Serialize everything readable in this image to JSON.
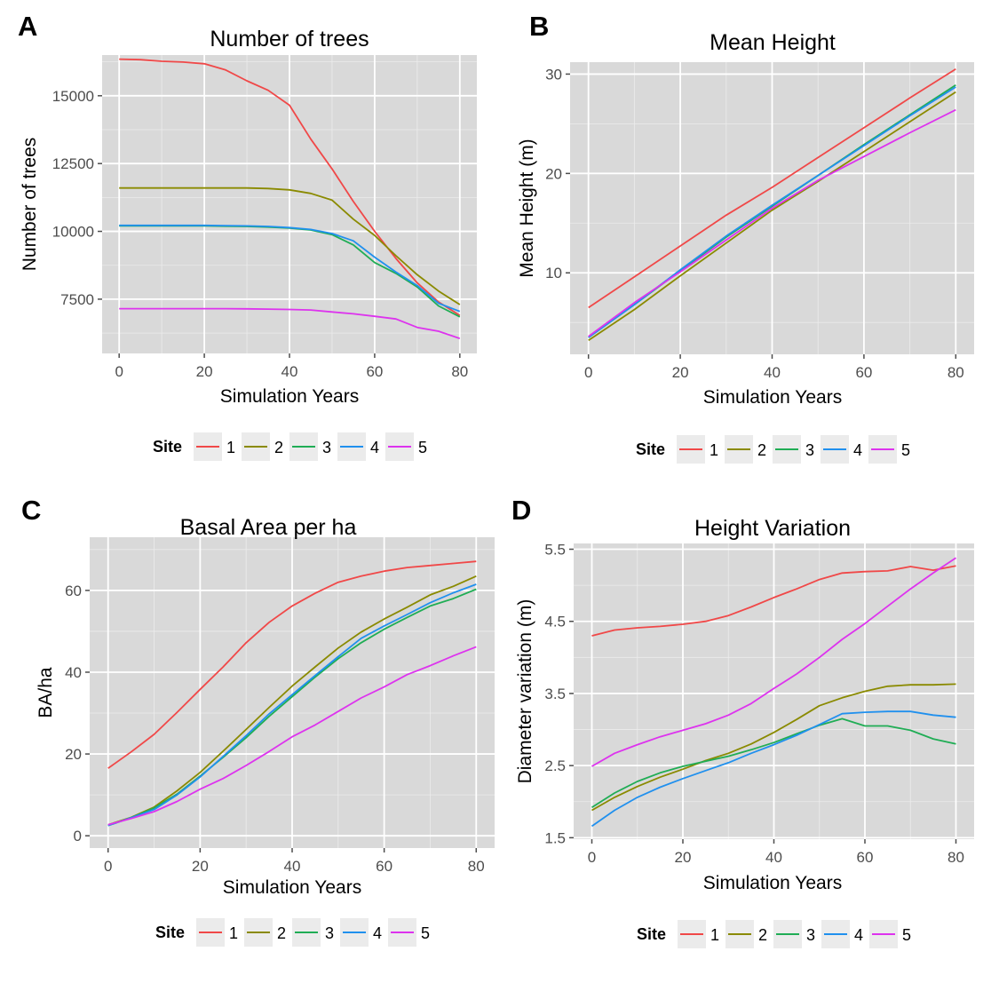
{
  "legend": {
    "title": "Site",
    "entries": [
      "1",
      "2",
      "3",
      "4",
      "5"
    ],
    "colors": [
      "#f04848",
      "#8a8a00",
      "#20ad55",
      "#2090ee",
      "#dd33ee"
    ]
  },
  "chart_data": [
    {
      "panel_label": "A",
      "type": "line",
      "title": "Number of trees",
      "xlabel": "Simulation Years",
      "ylabel": "Number of trees",
      "xlim": [
        -4,
        84
      ],
      "ylim": [
        5500,
        16500
      ],
      "xticks": [
        0,
        20,
        40,
        60,
        80
      ],
      "yticks": [
        7500,
        10000,
        12500,
        15000
      ],
      "ytick_labels": [
        "7500",
        "10000",
        "12500",
        "15000"
      ],
      "grid": true,
      "legend_position": "bottom",
      "x": [
        0,
        5,
        10,
        15,
        20,
        25,
        30,
        35,
        40,
        45,
        50,
        55,
        60,
        65,
        70,
        75,
        80
      ],
      "series": [
        {
          "name": "1",
          "values": [
            16350,
            16330,
            16270,
            16240,
            16180,
            15950,
            15550,
            15200,
            14650,
            13400,
            12300,
            11100,
            10000,
            9000,
            8100,
            7400,
            6900
          ]
        },
        {
          "name": "2",
          "values": [
            11600,
            11600,
            11600,
            11600,
            11600,
            11600,
            11600,
            11580,
            11530,
            11400,
            11150,
            10450,
            9850,
            9100,
            8400,
            7800,
            7300
          ]
        },
        {
          "name": "3",
          "values": [
            10200,
            10200,
            10200,
            10200,
            10200,
            10190,
            10180,
            10160,
            10120,
            10050,
            9880,
            9500,
            8850,
            8450,
            7950,
            7250,
            6850
          ]
        },
        {
          "name": "4",
          "values": [
            10220,
            10220,
            10220,
            10220,
            10220,
            10210,
            10200,
            10180,
            10140,
            10070,
            9920,
            9650,
            9050,
            8500,
            8000,
            7350,
            7050
          ]
        },
        {
          "name": "5",
          "values": [
            7150,
            7150,
            7150,
            7150,
            7150,
            7150,
            7145,
            7135,
            7120,
            7100,
            7030,
            6960,
            6870,
            6770,
            6460,
            6320,
            6050
          ]
        }
      ]
    },
    {
      "panel_label": "B",
      "type": "line",
      "title": "Mean Height",
      "xlabel": "Simulation Years",
      "ylabel": "Mean Height (m)",
      "xlim": [
        -4,
        84
      ],
      "ylim": [
        1.8,
        31.2
      ],
      "xticks": [
        0,
        20,
        40,
        60,
        80
      ],
      "yticks": [
        10,
        20,
        30
      ],
      "ytick_labels": [
        "10",
        "20",
        "30"
      ],
      "grid": true,
      "legend_position": "bottom",
      "x": [
        0,
        10,
        20,
        30,
        40,
        50,
        60,
        70,
        80
      ],
      "series": [
        {
          "name": "1",
          "values": [
            6.5,
            9.6,
            12.7,
            15.8,
            18.6,
            21.6,
            24.6,
            27.6,
            30.5
          ]
        },
        {
          "name": "2",
          "values": [
            3.2,
            6.3,
            9.7,
            13.0,
            16.3,
            19.2,
            22.2,
            25.2,
            28.2
          ]
        },
        {
          "name": "3",
          "values": [
            3.5,
            6.8,
            10.2,
            13.6,
            16.7,
            19.8,
            22.9,
            25.9,
            28.9
          ]
        },
        {
          "name": "4",
          "values": [
            3.5,
            6.8,
            10.3,
            13.7,
            16.8,
            19.8,
            22.8,
            25.8,
            28.7
          ]
        },
        {
          "name": "5",
          "values": [
            3.6,
            7.0,
            10.1,
            13.3,
            16.5,
            19.3,
            21.7,
            24.1,
            26.4
          ]
        }
      ]
    },
    {
      "panel_label": "C",
      "type": "line",
      "title": "Basal Area per ha",
      "xlabel": "Simulation Years",
      "ylabel": "BA/ha",
      "xlim": [
        -4,
        84
      ],
      "ylim": [
        -3,
        73
      ],
      "xticks": [
        0,
        20,
        40,
        60,
        80
      ],
      "yticks": [
        0,
        20,
        40,
        60
      ],
      "ytick_labels": [
        "0",
        "20",
        "40",
        "60"
      ],
      "grid": true,
      "legend_position": "bottom",
      "x": [
        0,
        5,
        10,
        15,
        20,
        25,
        30,
        35,
        40,
        45,
        50,
        55,
        60,
        65,
        70,
        75,
        80
      ],
      "series": [
        {
          "name": "1",
          "values": [
            16.5,
            20.5,
            24.8,
            30.2,
            35.8,
            41.3,
            47.2,
            52.2,
            56.2,
            59.3,
            62.0,
            63.5,
            64.7,
            65.6,
            66.1,
            66.6,
            67.1
          ]
        },
        {
          "name": "2",
          "values": [
            2.7,
            4.5,
            7.0,
            11.0,
            15.5,
            20.7,
            26.0,
            31.4,
            36.6,
            41.3,
            45.9,
            49.8,
            53.0,
            55.9,
            58.9,
            61.0,
            63.5
          ]
        },
        {
          "name": "3",
          "values": [
            2.5,
            4.4,
            6.8,
            10.2,
            14.6,
            19.2,
            24.0,
            29.2,
            34.0,
            38.8,
            43.3,
            47.2,
            50.5,
            53.4,
            56.2,
            58.0,
            60.3
          ]
        },
        {
          "name": "4",
          "values": [
            2.5,
            4.4,
            6.4,
            10.0,
            14.4,
            19.4,
            24.5,
            29.8,
            34.5,
            39.2,
            43.8,
            48.3,
            51.3,
            54.1,
            57.0,
            59.4,
            61.5
          ]
        },
        {
          "name": "5",
          "values": [
            2.7,
            4.2,
            5.9,
            8.4,
            11.4,
            14.0,
            17.2,
            20.6,
            24.2,
            27.1,
            30.4,
            33.7,
            36.4,
            39.4,
            41.6,
            44.0,
            46.2
          ]
        }
      ]
    },
    {
      "panel_label": "D",
      "type": "line",
      "title": "Height Variation",
      "xlabel": "Simulation Years",
      "ylabel": "Diameter variation (m)",
      "xlim": [
        -4,
        84
      ],
      "ylim": [
        1.48,
        5.58
      ],
      "xticks": [
        0,
        20,
        40,
        60,
        80
      ],
      "yticks": [
        1.5,
        2.5,
        3.5,
        4.5,
        5.5
      ],
      "ytick_labels": [
        "1.5",
        "2.5",
        "3.5",
        "4.5",
        "5.5"
      ],
      "grid": true,
      "legend_position": "bottom",
      "x": [
        0,
        5,
        10,
        15,
        20,
        25,
        30,
        35,
        40,
        45,
        50,
        55,
        60,
        65,
        70,
        75,
        80
      ],
      "series": [
        {
          "name": "1",
          "values": [
            4.3,
            4.38,
            4.41,
            4.43,
            4.46,
            4.5,
            4.58,
            4.7,
            4.83,
            4.95,
            5.08,
            5.17,
            5.19,
            5.2,
            5.26,
            5.21,
            5.27
          ]
        },
        {
          "name": "2",
          "values": [
            1.88,
            2.06,
            2.21,
            2.34,
            2.45,
            2.57,
            2.67,
            2.8,
            2.96,
            3.14,
            3.33,
            3.44,
            3.53,
            3.6,
            3.62,
            3.62,
            3.63
          ]
        },
        {
          "name": "3",
          "values": [
            1.92,
            2.12,
            2.28,
            2.4,
            2.49,
            2.56,
            2.63,
            2.72,
            2.82,
            2.94,
            3.06,
            3.15,
            3.05,
            3.05,
            2.99,
            2.87,
            2.8
          ]
        },
        {
          "name": "4",
          "values": [
            1.66,
            1.88,
            2.06,
            2.2,
            2.32,
            2.43,
            2.54,
            2.67,
            2.79,
            2.92,
            3.07,
            3.22,
            3.24,
            3.25,
            3.25,
            3.2,
            3.17
          ]
        },
        {
          "name": "5",
          "values": [
            2.49,
            2.67,
            2.79,
            2.9,
            2.99,
            3.08,
            3.2,
            3.36,
            3.57,
            3.77,
            4.0,
            4.25,
            4.47,
            4.71,
            4.95,
            5.17,
            5.38
          ]
        }
      ]
    }
  ]
}
